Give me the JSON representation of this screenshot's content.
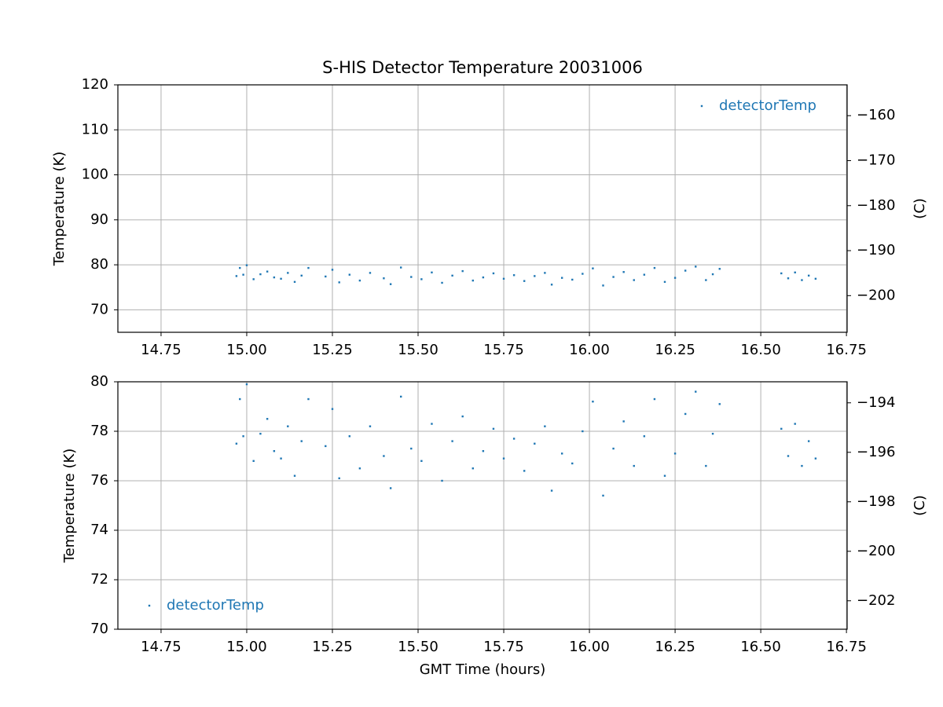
{
  "chart_data": [
    {
      "type": "scatter",
      "title": "S-HIS Detector Temperature 20031006",
      "ylabel": "Temperature (K)",
      "y2label": "(C)",
      "x": [
        14.97,
        14.98,
        14.99,
        15.0,
        15.02,
        15.04,
        15.06,
        15.08,
        15.1,
        15.12,
        15.14,
        15.16,
        15.18,
        15.23,
        15.25,
        15.27,
        15.3,
        15.33,
        15.36,
        15.4,
        15.42,
        15.45,
        15.48,
        15.51,
        15.54,
        15.57,
        15.6,
        15.63,
        15.66,
        15.69,
        15.72,
        15.75,
        15.78,
        15.81,
        15.84,
        15.87,
        15.89,
        15.92,
        15.95,
        15.98,
        16.01,
        16.04,
        16.07,
        16.1,
        16.13,
        16.16,
        16.19,
        16.22,
        16.25,
        16.28,
        16.31,
        16.34,
        16.36,
        16.38,
        16.56,
        16.58,
        16.6,
        16.62,
        16.64,
        16.66
      ],
      "series": [
        {
          "name": "detectorTemp",
          "color": "#1f77b4",
          "values": [
            77.5,
            79.3,
            77.8,
            79.9,
            76.8,
            77.9,
            78.5,
            77.2,
            76.9,
            78.2,
            76.2,
            77.6,
            79.3,
            77.4,
            78.9,
            76.1,
            77.8,
            76.5,
            78.2,
            77.0,
            75.7,
            79.4,
            77.3,
            76.8,
            78.3,
            76.0,
            77.6,
            78.6,
            76.5,
            77.2,
            78.1,
            76.9,
            77.7,
            76.4,
            77.5,
            78.2,
            75.6,
            77.1,
            76.7,
            78.0,
            79.2,
            75.4,
            77.3,
            78.4,
            76.6,
            77.8,
            79.3,
            76.2,
            77.1,
            78.7,
            79.6,
            76.6,
            77.9,
            79.1,
            78.1,
            77.0,
            78.3,
            76.6,
            77.6,
            76.9
          ]
        }
      ],
      "xlim": [
        14.624,
        16.752
      ],
      "xticks": [
        14.75,
        {
          "value": 15,
          "label": "15.00"
        },
        {
          "value": 15.25,
          "label": "15.25"
        },
        {
          "value": 15.5,
          "label": "15.50"
        },
        15.75,
        {
          "value": 16,
          "label": "16.00"
        },
        16.25,
        {
          "value": 16.5,
          "label": "16.50"
        },
        16.75
      ],
      "ylim": [
        65,
        120
      ],
      "yticks": [
        70,
        80,
        90,
        100,
        110,
        120
      ],
      "y2lim": [
        -208.15,
        -153.15
      ],
      "y2ticks": [
        {
          "value": -160,
          "label": "−160"
        },
        {
          "value": -170,
          "label": "−170"
        },
        {
          "value": -180,
          "label": "−180"
        },
        {
          "value": -190,
          "label": "−190"
        },
        {
          "value": -200,
          "label": "−200"
        }
      ],
      "grid": true,
      "legend": "upper right"
    },
    {
      "type": "scatter",
      "xlabel": "GMT Time (hours)",
      "ylabel": "Temperature (K)",
      "y2label": "(C)",
      "x": [
        14.97,
        14.98,
        14.99,
        15.0,
        15.02,
        15.04,
        15.06,
        15.08,
        15.1,
        15.12,
        15.14,
        15.16,
        15.18,
        15.23,
        15.25,
        15.27,
        15.3,
        15.33,
        15.36,
        15.4,
        15.42,
        15.45,
        15.48,
        15.51,
        15.54,
        15.57,
        15.6,
        15.63,
        15.66,
        15.69,
        15.72,
        15.75,
        15.78,
        15.81,
        15.84,
        15.87,
        15.89,
        15.92,
        15.95,
        15.98,
        16.01,
        16.04,
        16.07,
        16.1,
        16.13,
        16.16,
        16.19,
        16.22,
        16.25,
        16.28,
        16.31,
        16.34,
        16.36,
        16.38,
        16.56,
        16.58,
        16.6,
        16.62,
        16.64,
        16.66
      ],
      "series": [
        {
          "name": "detectorTemp",
          "color": "#1f77b4",
          "values": [
            77.5,
            79.3,
            77.8,
            79.9,
            76.8,
            77.9,
            78.5,
            77.2,
            76.9,
            78.2,
            76.2,
            77.6,
            79.3,
            77.4,
            78.9,
            76.1,
            77.8,
            76.5,
            78.2,
            77.0,
            75.7,
            79.4,
            77.3,
            76.8,
            78.3,
            76.0,
            77.6,
            78.6,
            76.5,
            77.2,
            78.1,
            76.9,
            77.7,
            76.4,
            77.5,
            78.2,
            75.6,
            77.1,
            76.7,
            78.0,
            79.2,
            75.4,
            77.3,
            78.4,
            76.6,
            77.8,
            79.3,
            76.2,
            77.1,
            78.7,
            79.6,
            76.6,
            77.9,
            79.1,
            78.1,
            77.0,
            78.3,
            76.6,
            77.6,
            76.9
          ]
        }
      ],
      "xlim": [
        14.624,
        16.752
      ],
      "xticks": [
        14.75,
        {
          "value": 15,
          "label": "15.00"
        },
        {
          "value": 15.25,
          "label": "15.25"
        },
        {
          "value": 15.5,
          "label": "15.50"
        },
        15.75,
        {
          "value": 16,
          "label": "16.00"
        },
        16.25,
        {
          "value": 16.5,
          "label": "16.50"
        },
        16.75
      ],
      "ylim": [
        70,
        80
      ],
      "yticks": [
        70,
        72,
        74,
        76,
        78,
        80
      ],
      "y2lim": [
        -203.15,
        -193.15
      ],
      "y2ticks": [
        {
          "value": -194,
          "label": "−194"
        },
        {
          "value": -196,
          "label": "−196"
        },
        {
          "value": -198,
          "label": "−198"
        },
        {
          "value": -200,
          "label": "−200"
        },
        {
          "value": -202,
          "label": "−202"
        }
      ],
      "grid": true,
      "legend": "lower left"
    }
  ]
}
